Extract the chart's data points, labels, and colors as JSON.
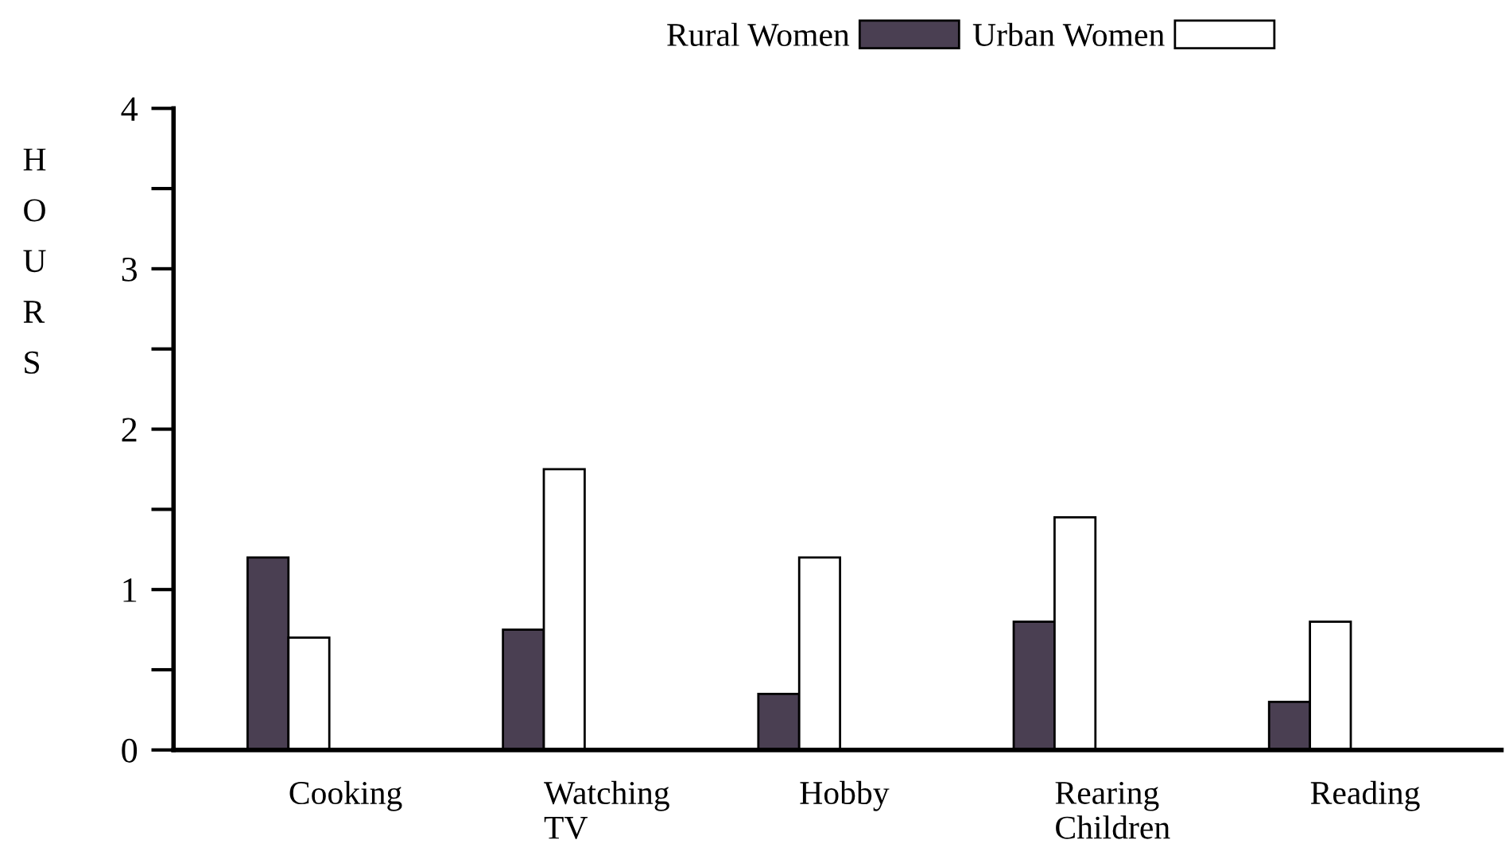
{
  "chart_data": {
    "type": "bar",
    "ylabel": "HOURS",
    "categories": [
      "Cooking",
      "Watching\nTV",
      "Hobby",
      "Rearing\nChildren",
      "Reading"
    ],
    "series": [
      {
        "name": "Rural Women",
        "color": "#4a3f52",
        "values": [
          1.2,
          0.75,
          0.35,
          0.8,
          0.3
        ]
      },
      {
        "name": "Urban Women",
        "color": "#ffffff",
        "values": [
          0.7,
          1.75,
          1.2,
          1.45,
          0.8
        ]
      }
    ],
    "ylim": [
      0,
      4
    ],
    "yticks": [
      0,
      {
        "value": 0.5,
        "label": null
      },
      1,
      {
        "value": 1.5,
        "label": null
      },
      2,
      {
        "value": 2.5,
        "label": null
      },
      3,
      {
        "value": 3.5,
        "label": null
      },
      4
    ],
    "grid": false,
    "legend": "top"
  }
}
